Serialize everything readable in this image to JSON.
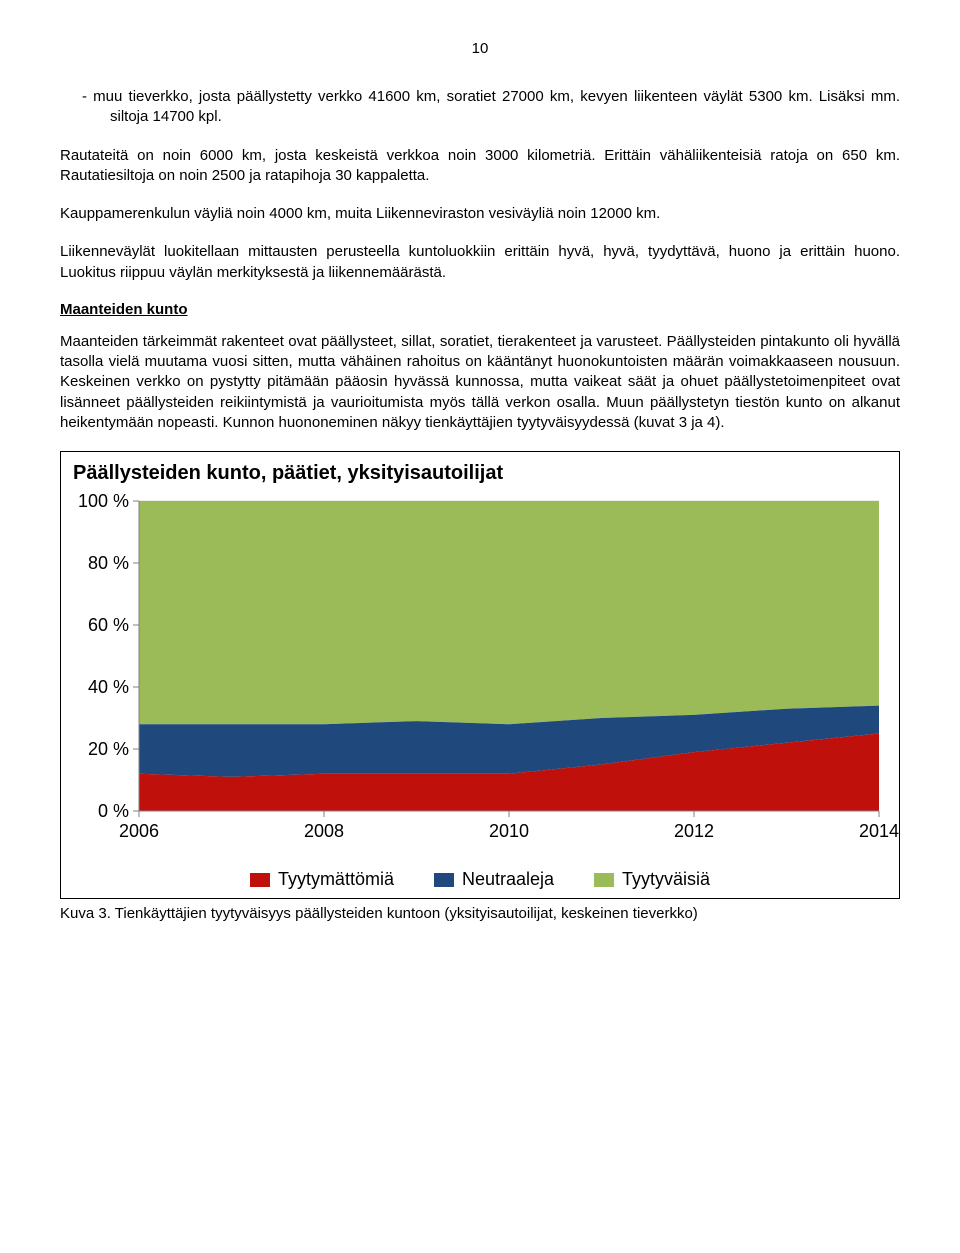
{
  "page_number": "10",
  "bullet_item": "-   muu tieverkko, josta päällystetty verkko 41600 km, soratiet 27000 km, kevyen liikenteen väylät 5300 km. Lisäksi mm. siltoja 14700 kpl.",
  "p1": "Rautateitä on noin 6000 km, josta keskeistä verkkoa noin 3000 kilometriä. Erittäin vähäliikenteisiä ratoja on 650 km. Rautatiesiltoja on noin 2500 ja ratapihoja 30 kappaletta.",
  "p2": "Kauppamerenkulun väyliä noin 4000 km, muita Liikenneviraston vesiväyliä noin 12000 km.",
  "p3": "Liikenneväylät luokitellaan mittausten perusteella kuntoluokkiin erittäin hyvä, hyvä, tyydyttävä, huono ja erittäin huono. Luokitus riippuu väylän merkityksestä ja liikennemäärästä.",
  "section_heading": "Maanteiden kunto",
  "p4": "Maanteiden tärkeimmät rakenteet ovat päällysteet, sillat, soratiet, tierakenteet ja varusteet. Päällysteiden pintakunto oli hyvällä tasolla vielä muutama vuosi sitten, mutta vähäinen rahoitus on kääntänyt huonokuntoisten määrän voimakkaaseen nousuun. Keskeinen verkko on pystytty pitämään pääosin hyvässä kunnossa, mutta vaikeat säät ja ohuet päällystetoimenpiteet ovat lisänneet päällysteiden reikiintymistä ja vaurioitumista myös tällä verkon osalla. Muun päällystetyn tiestön kunto on alkanut heikentymään nopeasti. Kunnon huononeminen näkyy tienkäyttäjien tyytyväisyydessä (kuvat 3 ja 4).",
  "caption": "Kuva 3. Tienkäyttäjien tyytyväisyys päällysteiden kuntoon (yksityisautoilijat, keskeinen tieverkko)",
  "chart": {
    "type": "area",
    "title": "Päällysteiden kunto, päätiet, yksityisautoilijat",
    "background_color": "#ffffff",
    "grid_color": "#d9d9d9",
    "axis_color": "#808080",
    "title_fontsize": 20,
    "axis_fontsize": 18,
    "x_labels": [
      "2006",
      "2008",
      "2010",
      "2012",
      "2014"
    ],
    "y_labels": [
      "0 %",
      "20 %",
      "40 %",
      "60 %",
      "80 %",
      "100 %"
    ],
    "y_values": [
      0,
      20,
      40,
      60,
      80,
      100
    ],
    "x_points": [
      0,
      1,
      2,
      3,
      4,
      5,
      6,
      7,
      8
    ],
    "series": [
      {
        "name": "Tyytymättömiä",
        "color": "#c0100b",
        "cum": [
          12,
          11,
          12,
          12,
          12,
          15,
          19,
          22,
          25
        ]
      },
      {
        "name": "Neutraaleja",
        "color": "#1f497d",
        "cum": [
          28,
          28,
          28,
          29,
          28,
          30,
          31,
          33,
          34
        ]
      },
      {
        "name": "Tyytyväisiä",
        "color": "#9bbb59",
        "cum": [
          100,
          100,
          100,
          100,
          100,
          100,
          100,
          100,
          100
        ]
      }
    ],
    "legend": [
      {
        "label": "Tyytymättömiä",
        "color": "#c0100b"
      },
      {
        "label": "Neutraaleja",
        "color": "#1f497d"
      },
      {
        "label": "Tyytyväisiä",
        "color": "#9bbb59"
      }
    ]
  }
}
